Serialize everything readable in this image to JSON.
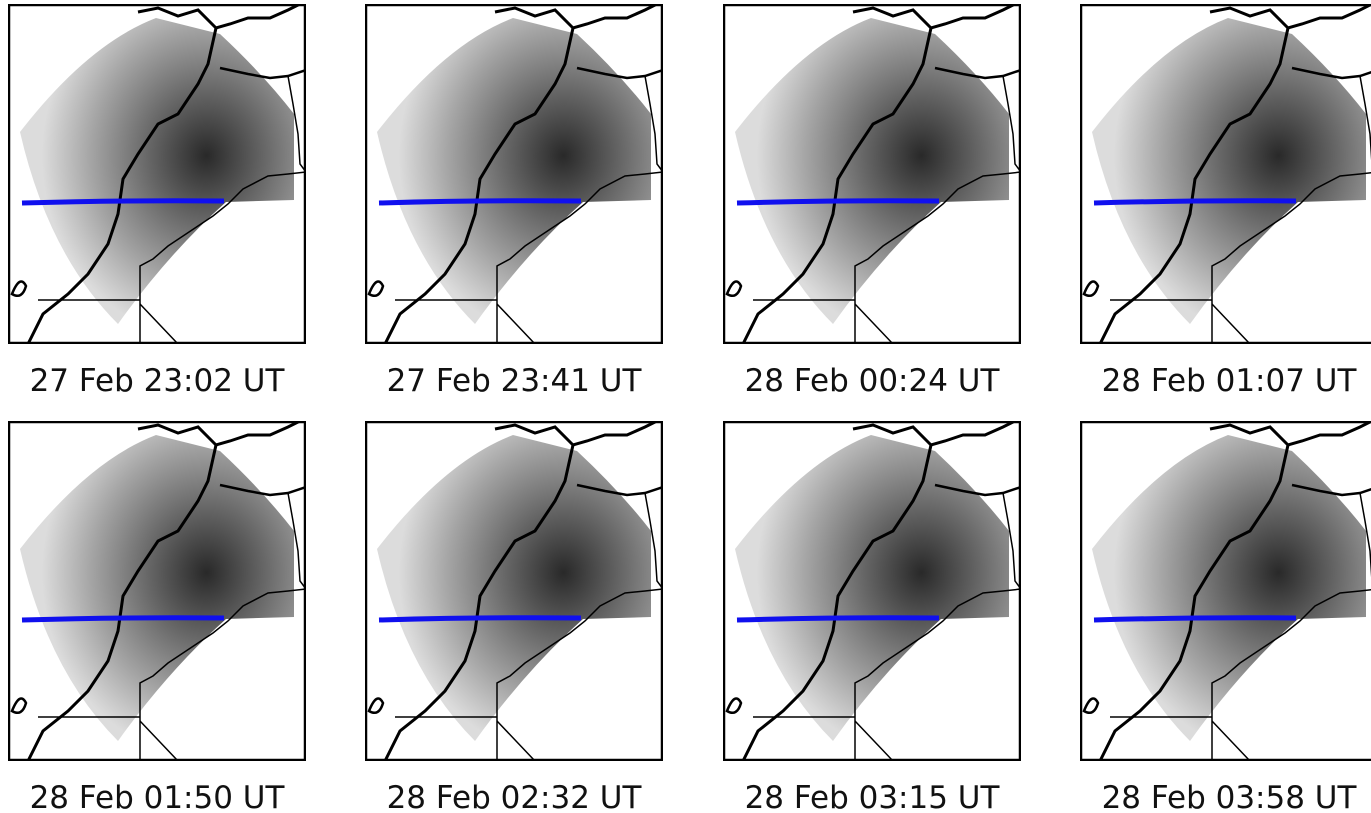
{
  "panels": [
    {
      "label": "27 Feb 23:02 UT"
    },
    {
      "label": "27 Feb 23:41 UT"
    },
    {
      "label": "28 Feb 00:24 UT"
    },
    {
      "label": "28 Feb 01:07 UT"
    },
    {
      "label": "28 Feb 01:50 UT"
    },
    {
      "label": "28 Feb 02:32 UT"
    },
    {
      "label": "28 Feb 03:15 UT"
    },
    {
      "label": "28 Feb 03:58 UT"
    }
  ]
}
